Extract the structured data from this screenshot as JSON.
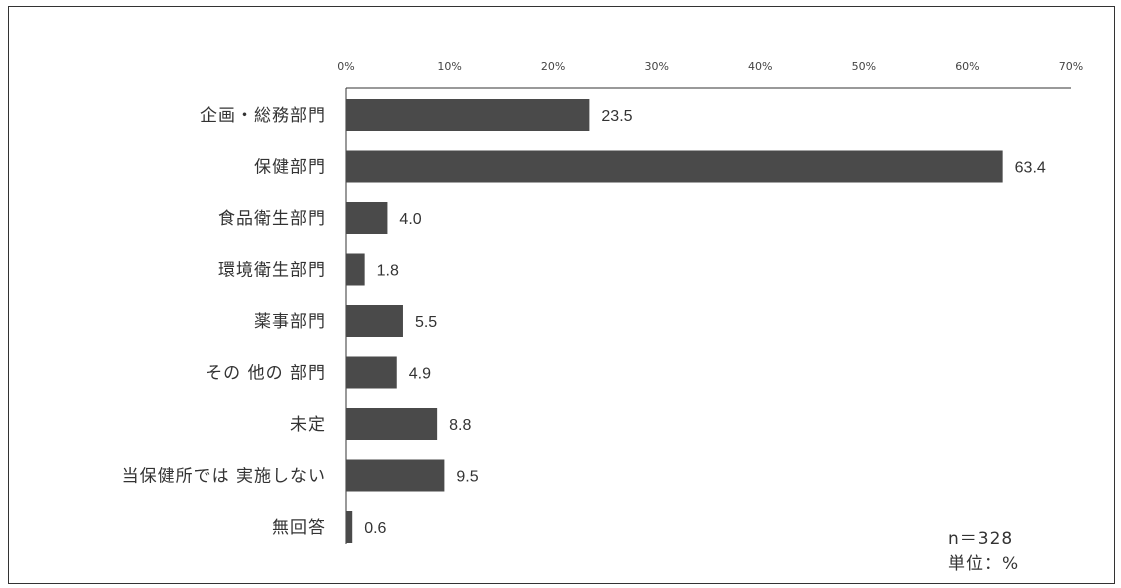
{
  "chart_data": {
    "type": "bar",
    "orientation": "horizontal",
    "categories": [
      "企画・総務部門",
      "保健部門",
      "食品衛生部門",
      "環境衛生部門",
      "薬事部門",
      "その 他の 部門",
      "未定",
      "当保健所では 実施しない",
      "無回答"
    ],
    "values": [
      23.5,
      63.4,
      4.0,
      1.8,
      5.5,
      4.9,
      8.8,
      9.5,
      0.6
    ],
    "value_labels": [
      "23.5",
      "63.4",
      "4.0",
      "1.8",
      "5.5",
      "4.9",
      "8.8",
      "9.5",
      "0.6"
    ],
    "xlim": [
      0,
      70
    ],
    "x_ticks": [
      0,
      10,
      20,
      30,
      40,
      50,
      60,
      70
    ],
    "x_tick_labels": [
      "0%",
      "10%",
      "20%",
      "30%",
      "40%",
      "50%",
      "60%",
      "70%"
    ],
    "axis_position": "top",
    "grid": false,
    "bar_color": "#4a4a4a",
    "title": "",
    "xlabel": "",
    "ylabel": ""
  },
  "notes": {
    "n": "n＝328",
    "unit": "単位：%"
  }
}
